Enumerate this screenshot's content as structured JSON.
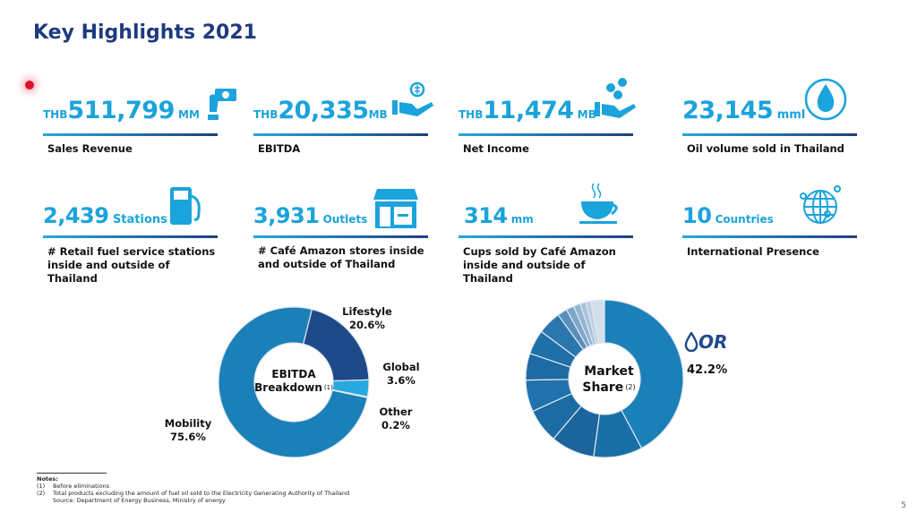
{
  "title": "Key Highlights 2021",
  "cards": [
    {
      "prefix": "THB",
      "value": "511,799",
      "unit": " MM",
      "label": "Sales Revenue",
      "icon": "money-hand-icon"
    },
    {
      "prefix": "THB",
      "value": "20,335",
      "unit": "MB",
      "label": "EBITDA",
      "icon": "coin-hand-icon"
    },
    {
      "prefix": "THB",
      "value": "11,474",
      "unit": " MB",
      "label": "Net Income",
      "icon": "coins-hand-icon"
    },
    {
      "prefix": "",
      "value": "23,145",
      "unit": " mml",
      "label": "Oil volume sold in Thailand",
      "icon": "oil-drop-icon"
    },
    {
      "value": "2,439",
      "unit": " Stations",
      "label1": "# Retail fuel service stations",
      "label2": "inside and outside of Thailand",
      "icon": "fuel-pump-icon"
    },
    {
      "value": "3,931",
      "unit": " Outlets",
      "label1": "# Café Amazon stores inside",
      "label2": "and outside of Thailand",
      "icon": "store-icon"
    },
    {
      "value": "314",
      "unit": "  mm",
      "label1": "Cups sold by Café Amazon",
      "label2": "inside and outside of Thailand",
      "icon": "coffee-cup-icon"
    },
    {
      "value": "10",
      "unit": " Countries",
      "label1": "International Presence",
      "label2": "",
      "icon": "globe-icon"
    }
  ],
  "chart_data": [
    {
      "type": "pie",
      "title": "EBITDA Breakdown",
      "title_line1": "EBITDA",
      "title_line2": "Breakdown",
      "note_ref": "(1)",
      "series": [
        {
          "name": "Lifestyle",
          "value": 20.6,
          "label": "20.6%",
          "color": "#1f4a8a"
        },
        {
          "name": "Global",
          "value": 3.6,
          "label": "3.6%",
          "color": "#27a9df"
        },
        {
          "name": "Other",
          "value": 0.2,
          "label": "0.2%",
          "color": "#1b80b8"
        },
        {
          "name": "Mobility",
          "value": 75.6,
          "label": "75.6%",
          "color": "#1b80b8"
        }
      ]
    },
    {
      "type": "pie",
      "title": "Market Share",
      "title_line1": "Market",
      "title_line2": "Share",
      "note_ref": "(2)",
      "highlight": {
        "name": "OR",
        "label": "42.2%"
      },
      "values": [
        42.2,
        10,
        9,
        7,
        6.5,
        5.5,
        5,
        4.8,
        2,
        1.6,
        1.4,
        1.2,
        1,
        2.8
      ]
    }
  ],
  "notes": {
    "heading": "Notes:",
    "items": [
      {
        "num": "(1)",
        "text": "Before eliminations"
      },
      {
        "num": "(2)",
        "text": "Total products excluding the amount of fuel oil sold to the Electricity Generating Authority of Thailand"
      },
      {
        "num": "",
        "text": "Source: Department of Energy Business, Ministry of energy"
      }
    ]
  },
  "page_number": "5",
  "colors": {
    "accent": "#1ba3db",
    "navy": "#1f3b7e"
  }
}
